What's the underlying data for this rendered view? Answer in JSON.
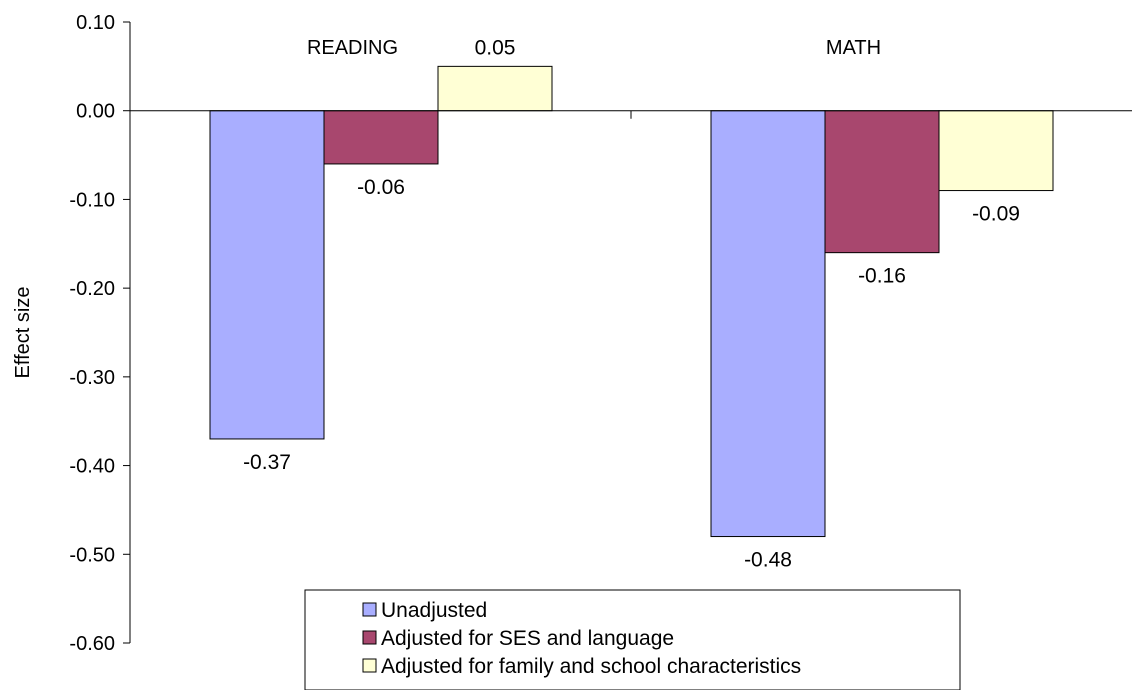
{
  "chart_data": {
    "type": "bar",
    "categories": [
      "READING",
      "MATH"
    ],
    "series": [
      {
        "name": "Unadjusted",
        "values": [
          -0.37,
          -0.48
        ],
        "labels": [
          "-0.37",
          "-0.48"
        ],
        "color": "#A9AEFF"
      },
      {
        "name": "Adjusted for SES and language",
        "values": [
          -0.06,
          -0.16
        ],
        "labels": [
          "-0.06",
          "-0.16"
        ],
        "color": "#A8476E"
      },
      {
        "name": "Adjusted for family and school characteristics",
        "values": [
          0.05,
          -0.09
        ],
        "labels": [
          "0.05",
          "-0.09"
        ],
        "color": "#FFFFD5"
      }
    ],
    "title": "",
    "xlabel": "",
    "ylabel": "Effect size",
    "ylim": [
      -0.6,
      0.1
    ],
    "yticks": [
      0.1,
      0.0,
      -0.1,
      -0.2,
      -0.3,
      -0.4,
      -0.5,
      -0.6
    ],
    "ytick_labels": [
      "0.10",
      "0.00",
      "-0.10",
      "-0.20",
      "-0.30",
      "-0.40",
      "-0.50",
      "-0.60"
    ],
    "grid": false,
    "legend_position": "bottom-center"
  }
}
